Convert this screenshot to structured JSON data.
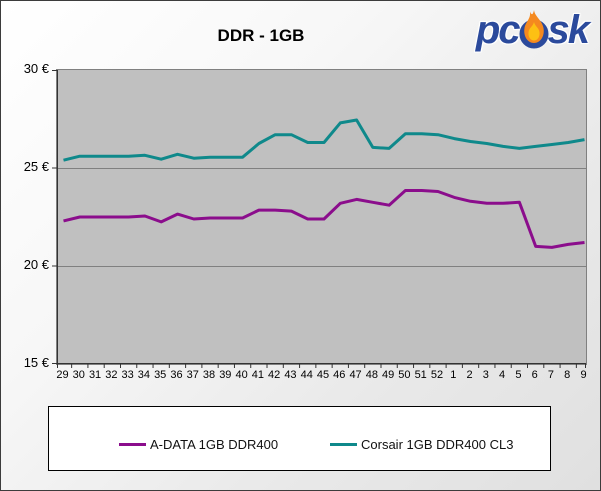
{
  "header": {
    "logo": {
      "part1": "pc",
      "part2": "sk",
      "letter_color": "#2B4A9C",
      "flame_outer_color": "#F5891F",
      "flame_inner_color": "#FDC013"
    }
  },
  "chart_data": {
    "type": "line",
    "title": "DDR - 1GB",
    "x_categories": [
      "29",
      "30",
      "31",
      "32",
      "33",
      "34",
      "35",
      "36",
      "37",
      "38",
      "39",
      "40",
      "41",
      "42",
      "43",
      "44",
      "45",
      "46",
      "47",
      "48",
      "49",
      "50",
      "51",
      "52",
      "1",
      "2",
      "3",
      "4",
      "5",
      "6",
      "7",
      "8",
      "9"
    ],
    "y_tick_labels": [
      "30 €",
      "25 €",
      "20 €",
      "15 €"
    ],
    "y_tick_values": [
      30,
      25,
      20,
      15
    ],
    "ylim": [
      15,
      30
    ],
    "y_gridline_values": [
      25,
      20
    ],
    "series": [
      {
        "name": "A-DATA 1GB DDR400",
        "color": "#8B0D8C",
        "values": [
          22.3,
          22.5,
          22.5,
          22.5,
          22.5,
          22.55,
          22.25,
          22.65,
          22.4,
          22.45,
          22.45,
          22.45,
          22.85,
          22.85,
          22.8,
          22.4,
          22.4,
          23.2,
          23.4,
          23.25,
          23.1,
          23.85,
          23.85,
          23.8,
          23.5,
          23.3,
          23.2,
          23.2,
          23.25,
          21.0,
          20.95,
          21.1,
          21.2
        ]
      },
      {
        "name": "Corsair 1GB DDR400 CL3",
        "color": "#0F898B",
        "values": [
          25.4,
          25.6,
          25.6,
          25.6,
          25.6,
          25.65,
          25.45,
          25.7,
          25.5,
          25.55,
          25.55,
          25.55,
          26.25,
          26.7,
          26.7,
          26.3,
          26.3,
          27.3,
          27.45,
          26.05,
          26.0,
          26.75,
          26.75,
          26.7,
          26.5,
          26.35,
          26.25,
          26.1,
          26.0,
          26.1,
          26.2,
          26.3,
          26.45
        ]
      }
    ],
    "legend_position": "bottom",
    "plot_background": "#C0C0C0",
    "gridline_color": "#808080",
    "axis_color": "#333333",
    "grid": true
  }
}
